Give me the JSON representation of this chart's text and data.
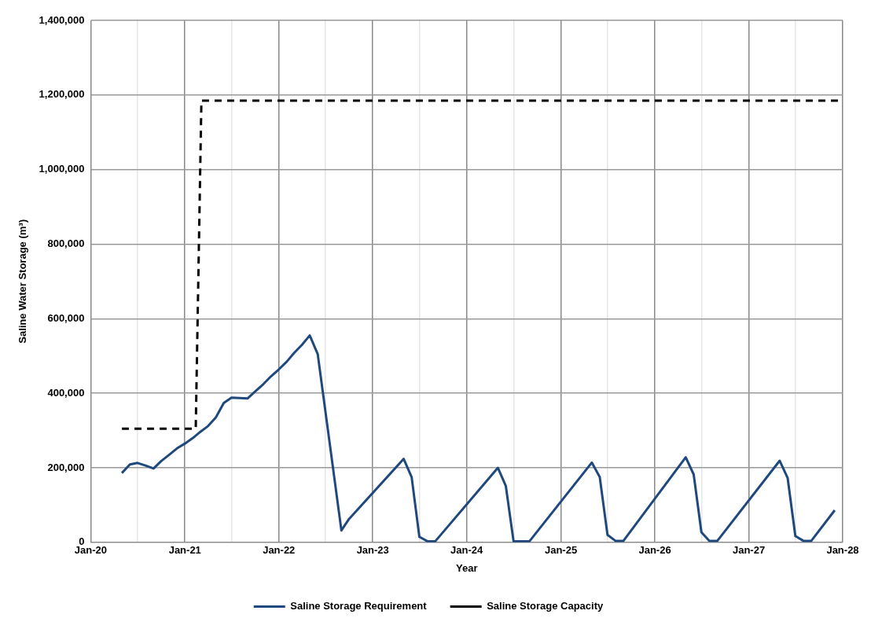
{
  "chart_data": {
    "type": "line",
    "xlabel": "Year",
    "ylabel": "Saline Water Storage (m³)",
    "xlim": [
      "2020-01",
      "2028-01"
    ],
    "xticks": [
      {
        "value": "2020-01",
        "label": "Jan-20"
      },
      {
        "value": "2020-07",
        "label": null
      },
      {
        "value": "2021-01",
        "label": "Jan-21"
      },
      {
        "value": "2021-07",
        "label": null
      },
      {
        "value": "2022-01",
        "label": "Jan-22"
      },
      {
        "value": "2022-07",
        "label": null
      },
      {
        "value": "2023-01",
        "label": "Jan-23"
      },
      {
        "value": "2023-07",
        "label": null
      },
      {
        "value": "2024-01",
        "label": "Jan-24"
      },
      {
        "value": "2024-07",
        "label": null
      },
      {
        "value": "2025-01",
        "label": "Jan-25"
      },
      {
        "value": "2025-07",
        "label": null
      },
      {
        "value": "2026-01",
        "label": "Jan-26"
      },
      {
        "value": "2026-07",
        "label": null
      },
      {
        "value": "2027-01",
        "label": "Jan-27"
      },
      {
        "value": "2027-07",
        "label": null
      },
      {
        "value": "2028-01",
        "label": "Jan-28"
      }
    ],
    "ylim": [
      0,
      1400000
    ],
    "yticks": [
      {
        "value": 0,
        "label": "0"
      },
      {
        "value": 200000,
        "label": "200,000"
      },
      {
        "value": 400000,
        "label": "400,000"
      },
      {
        "value": 600000,
        "label": "600,000"
      },
      {
        "value": 800000,
        "label": "800,000"
      },
      {
        "value": 1000000,
        "label": "1,000,000"
      },
      {
        "value": 1200000,
        "label": "1,200,000"
      },
      {
        "value": 1400000,
        "label": "1,400,000"
      }
    ],
    "grid": true,
    "legend": "bottom",
    "marker": "none",
    "series": [
      {
        "name": "Saline Storage Requirement",
        "color": "#1f497d",
        "line_style": "solid",
        "x": [
          "2020-05",
          "2020-06",
          "2020-07",
          "2020-08",
          "2020-09",
          "2020-10",
          "2020-11",
          "2020-12",
          "2021-01",
          "2021-02",
          "2021-03",
          "2021-04",
          "2021-05",
          "2021-06",
          "2021-07",
          "2021-08",
          "2021-09",
          "2021-10",
          "2021-11",
          "2021-12",
          "2022-01",
          "2022-02",
          "2022-03",
          "2022-04",
          "2022-05",
          "2022-06",
          "2022-09",
          "2022-10",
          "2023-05",
          "2023-06",
          "2023-07",
          "2023-08",
          "2023-09",
          "2024-05",
          "2024-06",
          "2024-07",
          "2024-08",
          "2024-09",
          "2025-05",
          "2025-06",
          "2025-07",
          "2025-08",
          "2025-09",
          "2026-05",
          "2026-06",
          "2026-07",
          "2026-08",
          "2026-09",
          "2027-05",
          "2027-06",
          "2027-07",
          "2027-08",
          "2027-09",
          "2027-12"
        ],
        "values": [
          186000,
          209000,
          213000,
          206000,
          198000,
          218000,
          235000,
          252000,
          265000,
          280000,
          296000,
          312000,
          335000,
          374000,
          388000,
          387000,
          386000,
          405000,
          424000,
          445000,
          464000,
          485000,
          508000,
          530000,
          555000,
          505000,
          32000,
          63000,
          224000,
          175000,
          15000,
          3000,
          3000,
          200000,
          151000,
          3000,
          3000,
          3000,
          214000,
          175000,
          20000,
          4000,
          4000,
          228000,
          182000,
          27000,
          4000,
          4000,
          219000,
          173000,
          17000,
          4000,
          4000,
          86000
        ]
      },
      {
        "name": "Saline Storage Capacity",
        "color": "#000000",
        "line_style": "dashed",
        "x": [
          "2020-05",
          "2021-02-12",
          "2021-03-06",
          "2028-01"
        ],
        "values": [
          305000,
          305000,
          1185000,
          1185000
        ]
      }
    ]
  }
}
